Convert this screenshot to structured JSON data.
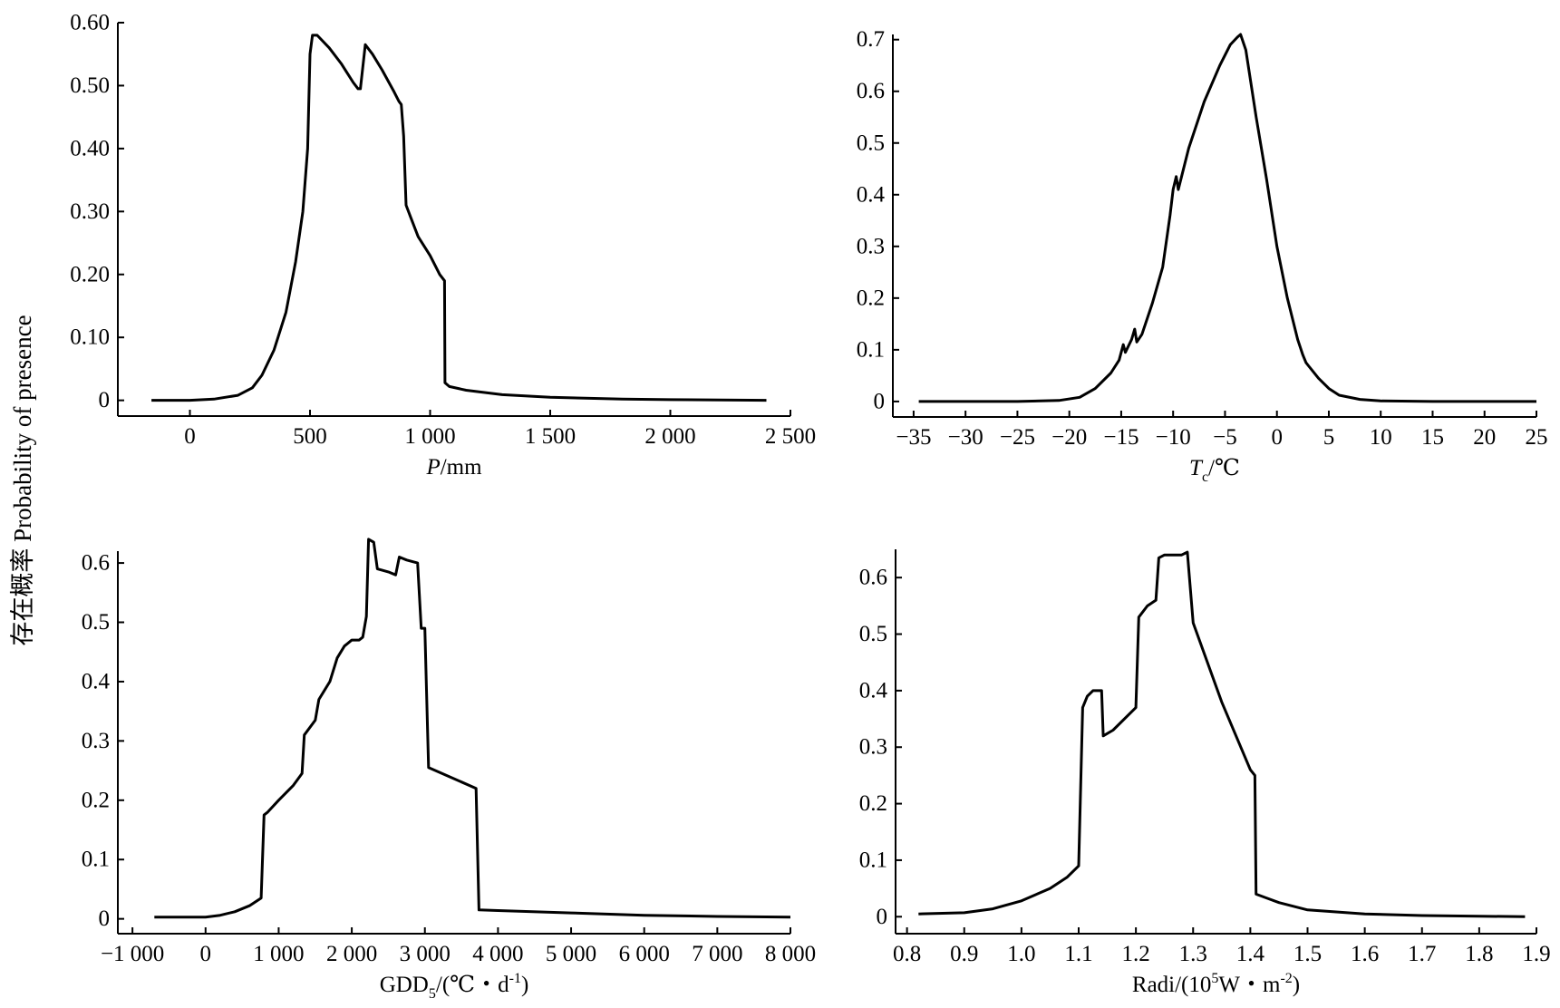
{
  "figure": {
    "shared_ylabel": "存在概率  Probability of presence"
  },
  "chart_data": [
    {
      "type": "line",
      "xlabel_parts": [
        {
          "t": "P",
          "s": "italic"
        },
        {
          "t": "/mm"
        }
      ],
      "xlim": [
        -300,
        2500
      ],
      "ylim": [
        -0.025,
        0.6
      ],
      "xticks": [
        0,
        500,
        1000,
        1500,
        2000,
        2500
      ],
      "xtick_labels": [
        "0",
        "500",
        "1 000",
        "1 500",
        "2 000",
        "2 500"
      ],
      "yticks": [
        0,
        0.1,
        0.2,
        0.3,
        0.4,
        0.5,
        0.6
      ],
      "ytick_labels": [
        "0",
        "0.10",
        "0.20",
        "0.30",
        "0.40",
        "0.50",
        "0.60"
      ],
      "series": [
        {
          "x": [
            -160,
            0,
            100,
            200,
            260,
            300,
            350,
            400,
            440,
            470,
            490,
            500,
            510,
            530,
            580,
            630,
            680,
            700,
            710,
            730,
            760,
            800,
            850,
            870,
            880,
            890,
            900,
            920,
            950,
            1000,
            1040,
            1060,
            1062,
            1080,
            1150,
            1300,
            1500,
            1800,
            2000,
            2400
          ],
          "y": [
            0,
            0,
            0.002,
            0.008,
            0.02,
            0.04,
            0.08,
            0.14,
            0.22,
            0.3,
            0.4,
            0.55,
            0.58,
            0.58,
            0.56,
            0.535,
            0.505,
            0.495,
            0.495,
            0.565,
            0.55,
            0.525,
            0.49,
            0.475,
            0.47,
            0.42,
            0.31,
            0.29,
            0.26,
            0.23,
            0.2,
            0.19,
            0.028,
            0.022,
            0.016,
            0.009,
            0.005,
            0.002,
            0.001,
            0
          ]
        }
      ]
    },
    {
      "type": "line",
      "xlabel_parts": [
        {
          "t": "T",
          "s": "italic"
        },
        {
          "t": "c",
          "s": "sub"
        },
        {
          "t": "/℃"
        }
      ],
      "xlim": [
        -37,
        25
      ],
      "ylim": [
        -0.03,
        0.71
      ],
      "xticks": [
        -35,
        -30,
        -25,
        -20,
        -15,
        -10,
        -5,
        0,
        5,
        10,
        15,
        20,
        25
      ],
      "xtick_labels": [
        "−35",
        "−30",
        "−25",
        "−20",
        "−15",
        "−10",
        "−5",
        "0",
        "5",
        "10",
        "15",
        "20",
        "25"
      ],
      "yticks": [
        0,
        0.1,
        0.2,
        0.3,
        0.4,
        0.5,
        0.6,
        0.7
      ],
      "ytick_labels": [
        "0",
        "0.1",
        "0.2",
        "0.3",
        "0.4",
        "0.5",
        "0.6",
        "0.7"
      ],
      "series": [
        {
          "x": [
            -34.5,
            -25,
            -21,
            -19,
            -17.5,
            -16,
            -15.2,
            -14.8,
            -14.6,
            -14,
            -13.7,
            -13.5,
            -13,
            -12,
            -11,
            -10.3,
            -10,
            -9.7,
            -9.5,
            -8.5,
            -7,
            -5.5,
            -4.5,
            -3.8,
            -3.5,
            -3,
            -2,
            -1,
            0,
            1,
            2,
            2.5,
            2.8,
            3,
            4,
            5,
            6,
            8,
            10,
            15,
            20,
            25
          ],
          "y": [
            0,
            0,
            0.002,
            0.008,
            0.025,
            0.055,
            0.08,
            0.11,
            0.095,
            0.12,
            0.14,
            0.115,
            0.13,
            0.19,
            0.26,
            0.36,
            0.41,
            0.435,
            0.41,
            0.49,
            0.58,
            0.65,
            0.69,
            0.705,
            0.71,
            0.68,
            0.55,
            0.43,
            0.3,
            0.2,
            0.12,
            0.09,
            0.075,
            0.07,
            0.045,
            0.025,
            0.012,
            0.004,
            0.001,
            0,
            0,
            0
          ]
        }
      ]
    },
    {
      "type": "line",
      "xlabel_parts": [
        {
          "t": "GDD"
        },
        {
          "t": "5",
          "s": "sub"
        },
        {
          "t": "/(℃・d"
        },
        {
          "t": "-1",
          "s": "sup"
        },
        {
          "t": ")"
        }
      ],
      "xlim": [
        -1200,
        8000
      ],
      "ylim": [
        -0.025,
        0.62
      ],
      "xticks": [
        -1000,
        0,
        1000,
        2000,
        3000,
        4000,
        5000,
        6000,
        7000,
        8000
      ],
      "xtick_labels": [
        "−1 000",
        "0",
        "1 000",
        "2 000",
        "3 000",
        "4 000",
        "5 000",
        "6 000",
        "7 000",
        "8 000"
      ],
      "yticks": [
        0,
        0.1,
        0.2,
        0.3,
        0.4,
        0.5,
        0.6
      ],
      "ytick_labels": [
        "0",
        "0.1",
        "0.2",
        "0.3",
        "0.4",
        "0.5",
        "0.6"
      ],
      "series": [
        {
          "x": [
            -700,
            0,
            200,
            400,
            600,
            760,
            800,
            850,
            1000,
            1200,
            1320,
            1350,
            1500,
            1550,
            1700,
            1800,
            1900,
            2000,
            2100,
            2150,
            2200,
            2230,
            2300,
            2350,
            2500,
            2600,
            2650,
            2750,
            2900,
            2950,
            3000,
            3050,
            3700,
            3740,
            4000,
            5000,
            6000,
            7000,
            8000
          ],
          "y": [
            0.003,
            0.003,
            0.006,
            0.012,
            0.022,
            0.035,
            0.175,
            0.18,
            0.2,
            0.225,
            0.245,
            0.31,
            0.335,
            0.37,
            0.4,
            0.44,
            0.46,
            0.47,
            0.47,
            0.475,
            0.51,
            0.64,
            0.635,
            0.59,
            0.585,
            0.58,
            0.61,
            0.605,
            0.6,
            0.49,
            0.49,
            0.255,
            0.22,
            0.015,
            0.014,
            0.01,
            0.006,
            0.004,
            0.003
          ]
        }
      ]
    },
    {
      "type": "line",
      "xlabel_parts": [
        {
          "t": "Radi/(10"
        },
        {
          "t": "5",
          "s": "sup"
        },
        {
          "t": "W・m"
        },
        {
          "t": "-2",
          "s": "sup"
        },
        {
          "t": ")"
        }
      ],
      "xlim": [
        0.78,
        1.9
      ],
      "ylim": [
        -0.03,
        0.65
      ],
      "xticks": [
        0.8,
        0.9,
        1.0,
        1.1,
        1.2,
        1.3,
        1.4,
        1.5,
        1.6,
        1.7,
        1.8,
        1.9
      ],
      "xtick_labels": [
        "0.8",
        "0.9",
        "1.0",
        "1.1",
        "1.2",
        "1.3",
        "1.4",
        "1.5",
        "1.6",
        "1.7",
        "1.8",
        "1.9"
      ],
      "yticks": [
        0,
        0.1,
        0.2,
        0.3,
        0.4,
        0.5,
        0.6
      ],
      "ytick_labels": [
        "0",
        "0.1",
        "0.2",
        "0.3",
        "0.4",
        "0.5",
        "0.6"
      ],
      "series": [
        {
          "x": [
            0.82,
            0.9,
            0.95,
            1.0,
            1.05,
            1.08,
            1.1,
            1.107,
            1.115,
            1.125,
            1.14,
            1.143,
            1.16,
            1.2,
            1.205,
            1.22,
            1.235,
            1.24,
            1.25,
            1.28,
            1.29,
            1.3,
            1.35,
            1.4,
            1.408,
            1.41,
            1.45,
            1.5,
            1.6,
            1.7,
            1.8,
            1.88
          ],
          "y": [
            0.005,
            0.007,
            0.014,
            0.028,
            0.05,
            0.07,
            0.09,
            0.37,
            0.39,
            0.4,
            0.4,
            0.32,
            0.33,
            0.37,
            0.53,
            0.55,
            0.56,
            0.635,
            0.64,
            0.64,
            0.645,
            0.52,
            0.38,
            0.26,
            0.25,
            0.04,
            0.025,
            0.012,
            0.005,
            0.002,
            0.001,
            0
          ]
        }
      ]
    }
  ]
}
